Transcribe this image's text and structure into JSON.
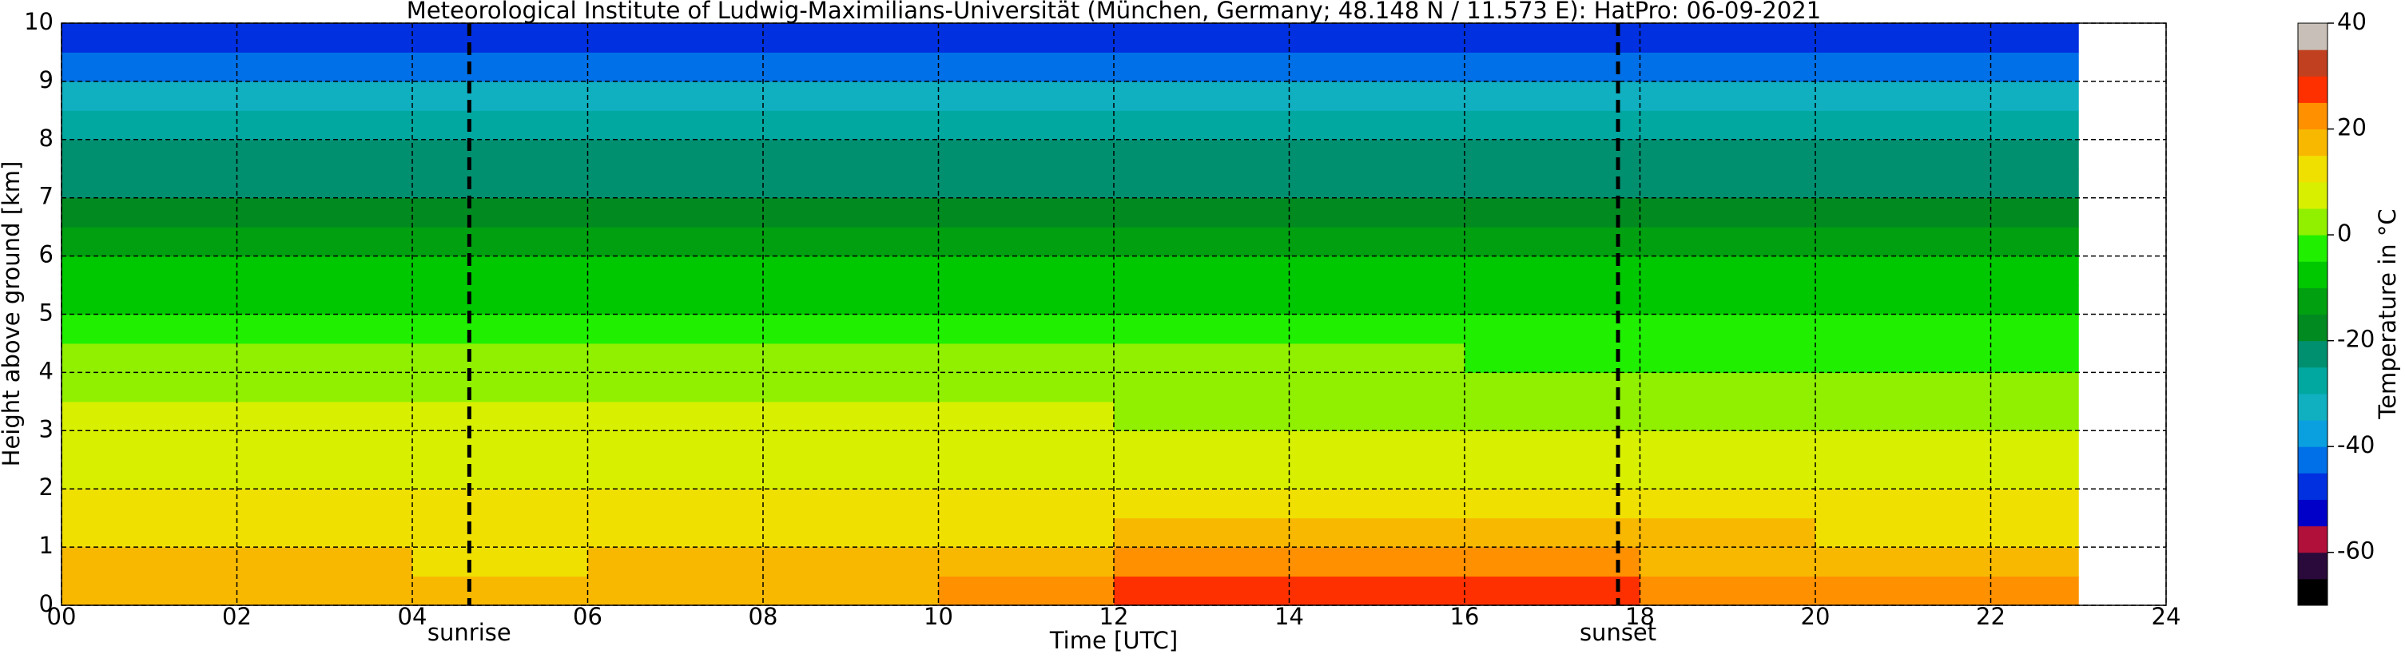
{
  "chart_data": {
    "type": "heatmap",
    "title": "Meteorological Institute of Ludwig-Maximilians-Universität (München, Germany; 48.148 N / 11.573 E):    HatPro: 06-09-2021",
    "x_label": "Time [UTC]",
    "y_label": "Height above ground [km]",
    "xlim": [
      0,
      24
    ],
    "ylim": [
      0,
      10
    ],
    "xticks": [
      {
        "value": 0,
        "label": "00"
      },
      {
        "value": 2,
        "label": "02"
      },
      {
        "value": 4,
        "label": "04"
      },
      {
        "value": 6,
        "label": "06"
      },
      {
        "value": 8,
        "label": "08"
      },
      {
        "value": 10,
        "label": "10"
      },
      12,
      14,
      16,
      18,
      20,
      22,
      24
    ],
    "yticks": [
      0,
      1,
      2,
      3,
      4,
      5,
      6,
      7,
      8,
      9,
      10
    ],
    "grid": true,
    "x_edges": [
      0,
      2,
      4,
      6,
      8,
      10,
      12,
      14,
      16,
      18,
      20,
      22,
      23
    ],
    "y_edges": [
      0,
      0.5,
      1,
      1.5,
      2,
      2.5,
      3,
      3.5,
      4,
      4.5,
      5,
      5.5,
      6,
      6.5,
      7,
      7.5,
      8,
      8.5,
      9,
      9.5,
      10
    ],
    "z": [
      [
        18,
        17,
        16,
        17,
        19,
        23,
        27,
        29,
        28,
        24,
        21,
        20
      ],
      [
        15,
        15,
        14,
        15,
        16,
        18,
        21,
        22,
        22,
        19,
        17,
        16
      ],
      [
        13,
        13,
        13,
        13,
        13,
        14,
        15,
        16,
        16,
        15,
        14,
        14
      ],
      [
        11,
        11,
        11,
        11,
        11,
        11,
        12,
        12,
        12,
        12,
        11,
        11
      ],
      [
        9,
        9,
        9,
        9,
        9,
        9,
        9,
        9,
        9,
        9,
        9,
        9
      ],
      [
        7,
        7,
        7,
        7,
        7,
        7,
        7,
        7,
        7,
        7,
        7,
        7
      ],
      [
        5,
        5,
        5,
        5,
        5,
        5,
        4,
        4,
        4,
        4,
        4,
        4
      ],
      [
        3,
        3,
        3,
        3,
        2,
        2,
        2,
        2,
        1,
        1,
        1,
        1
      ],
      [
        0,
        0,
        0,
        0,
        0,
        0,
        0,
        0,
        -1,
        -1,
        -1,
        -1
      ],
      [
        -3,
        -3,
        -3,
        -3,
        -3,
        -3,
        -3,
        -3,
        -3,
        -3,
        -3,
        -3
      ],
      [
        -6,
        -6,
        -6,
        -6,
        -6,
        -6,
        -6,
        -6,
        -6,
        -6,
        -6,
        -6
      ],
      [
        -9,
        -9,
        -9,
        -9,
        -9,
        -9,
        -9,
        -9,
        -9,
        -9,
        -9,
        -9
      ],
      [
        -13,
        -13,
        -13,
        -13,
        -13,
        -13,
        -13,
        -13,
        -13,
        -13,
        -13,
        -13
      ],
      [
        -17,
        -17,
        -17,
        -17,
        -17,
        -17,
        -17,
        -17,
        -17,
        -17,
        -17,
        -17
      ],
      [
        -21,
        -21,
        -21,
        -21,
        -21,
        -21,
        -21,
        -21,
        -21,
        -21,
        -21,
        -21
      ],
      [
        -25,
        -25,
        -25,
        -25,
        -25,
        -25,
        -25,
        -25,
        -25,
        -25,
        -25,
        -25
      ],
      [
        -30,
        -30,
        -30,
        -30,
        -30,
        -30,
        -30,
        -30,
        -30,
        -30,
        -30,
        -30
      ],
      [
        -35,
        -35,
        -35,
        -35,
        -35,
        -35,
        -35,
        -35,
        -35,
        -35,
        -35,
        -35
      ],
      [
        -41,
        -41,
        -41,
        -41,
        -41,
        -41,
        -41,
        -41,
        -41,
        -41,
        -41,
        -41
      ],
      [
        -48,
        -48,
        -48,
        -48,
        -48,
        -48,
        -48,
        -48,
        -48,
        -48,
        -48,
        -48
      ]
    ],
    "annotations": [
      {
        "label": "sunrise",
        "x": 4.65
      },
      {
        "label": "sunset",
        "x": 17.75
      }
    ],
    "colorbar": {
      "label": "Temperature in $^\\circ$C",
      "lim": [
        -70,
        40
      ],
      "ticks": [
        -60,
        -40,
        -20,
        0,
        20,
        40
      ],
      "colors": [
        "#000000",
        "#2a0a3a",
        "#b0103a",
        "#0000c8",
        "#0030e0",
        "#0070e8",
        "#0aa0e0",
        "#10b0c0",
        "#00a8a0",
        "#009070",
        "#008a20",
        "#00a010",
        "#00c800",
        "#20f000",
        "#90f000",
        "#d8f000",
        "#f0e000",
        "#f8b800",
        "#ff9000",
        "#ff3000",
        "#c04020",
        "#c8c0b8"
      ]
    }
  }
}
